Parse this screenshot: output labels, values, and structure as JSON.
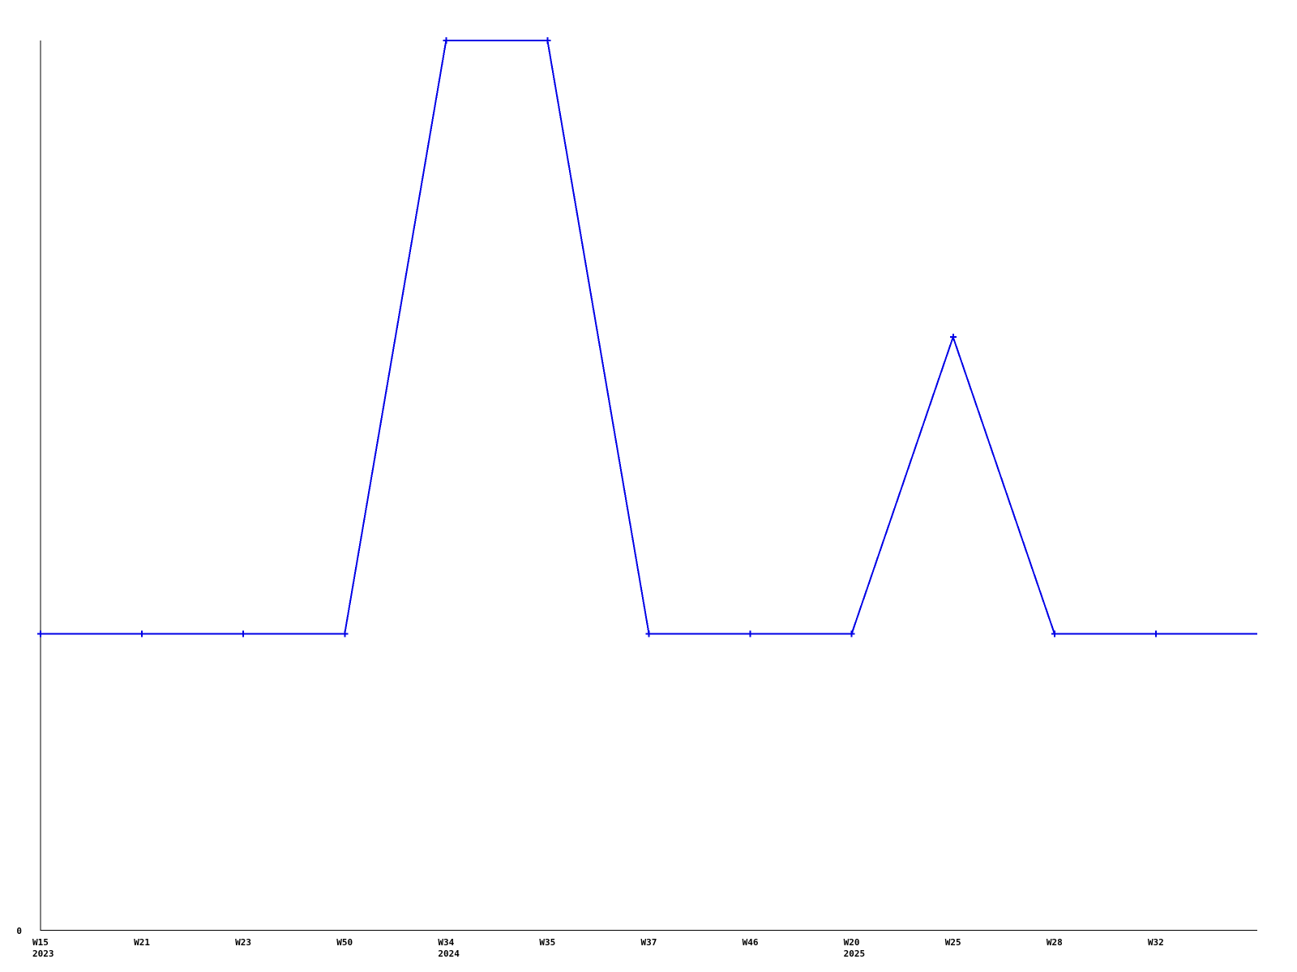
{
  "chart_data": {
    "type": "line",
    "title": "",
    "xlabel": "",
    "ylabel": "",
    "grid": false,
    "legend": "none",
    "background_color": "#ffffff",
    "axis_color": "#000000",
    "line_color": "#0000e6",
    "marker": "plus",
    "marker_color": "#0000e6",
    "y_axis": {
      "min": 0,
      "max": 3,
      "tick_labels": [
        "0"
      ]
    },
    "points": [
      {
        "week": "W15",
        "year": "2023",
        "value": 1,
        "marker": true
      },
      {
        "week": "W21",
        "year": "",
        "value": 1,
        "marker": true
      },
      {
        "week": "W23",
        "year": "",
        "value": 1,
        "marker": true
      },
      {
        "week": "W50",
        "year": "",
        "value": 1,
        "marker": true
      },
      {
        "week": "W34",
        "year": "2024",
        "value": 3,
        "marker": true
      },
      {
        "week": "W35",
        "year": "",
        "value": 3,
        "marker": true
      },
      {
        "week": "W37",
        "year": "",
        "value": 1,
        "marker": true
      },
      {
        "week": "W46",
        "year": "",
        "value": 1,
        "marker": true
      },
      {
        "week": "W20",
        "year": "2025",
        "value": 1,
        "marker": true
      },
      {
        "week": "W25",
        "year": "",
        "value": 2,
        "marker": true
      },
      {
        "week": "W28",
        "year": "",
        "value": 1,
        "marker": true
      },
      {
        "week": "W32",
        "year": "",
        "value": 1,
        "marker": true
      },
      {
        "week": "",
        "year": "",
        "value": 1,
        "marker": false
      }
    ]
  }
}
